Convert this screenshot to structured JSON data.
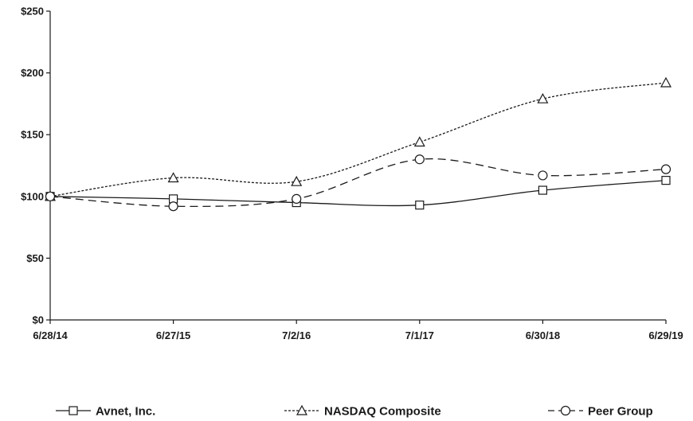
{
  "chart_data": {
    "type": "line",
    "categories": [
      "6/28/14",
      "6/27/15",
      "7/2/16",
      "7/1/17",
      "6/30/18",
      "6/29/19"
    ],
    "ylim": [
      0,
      250
    ],
    "yticks": [
      0,
      50,
      100,
      150,
      200,
      250
    ],
    "ytick_labels": [
      "$0",
      "$50",
      "$100",
      "$150",
      "$200",
      "$250"
    ],
    "grid": false,
    "legend_position": "bottom",
    "series": [
      {
        "name": "Avnet, Inc.",
        "marker": "square",
        "dash": "solid",
        "values": [
          100,
          98,
          95,
          93,
          105,
          113
        ]
      },
      {
        "name": "NASDAQ Composite",
        "marker": "triangle",
        "dash": "dotted",
        "values": [
          100,
          115,
          112,
          144,
          179,
          192
        ]
      },
      {
        "name": "Peer Group",
        "marker": "circle",
        "dash": "dashed",
        "values": [
          100,
          92,
          98,
          130,
          117,
          122
        ]
      }
    ],
    "colors": {
      "line": "#1a1a1a",
      "axis": "#1a1a1a"
    }
  }
}
